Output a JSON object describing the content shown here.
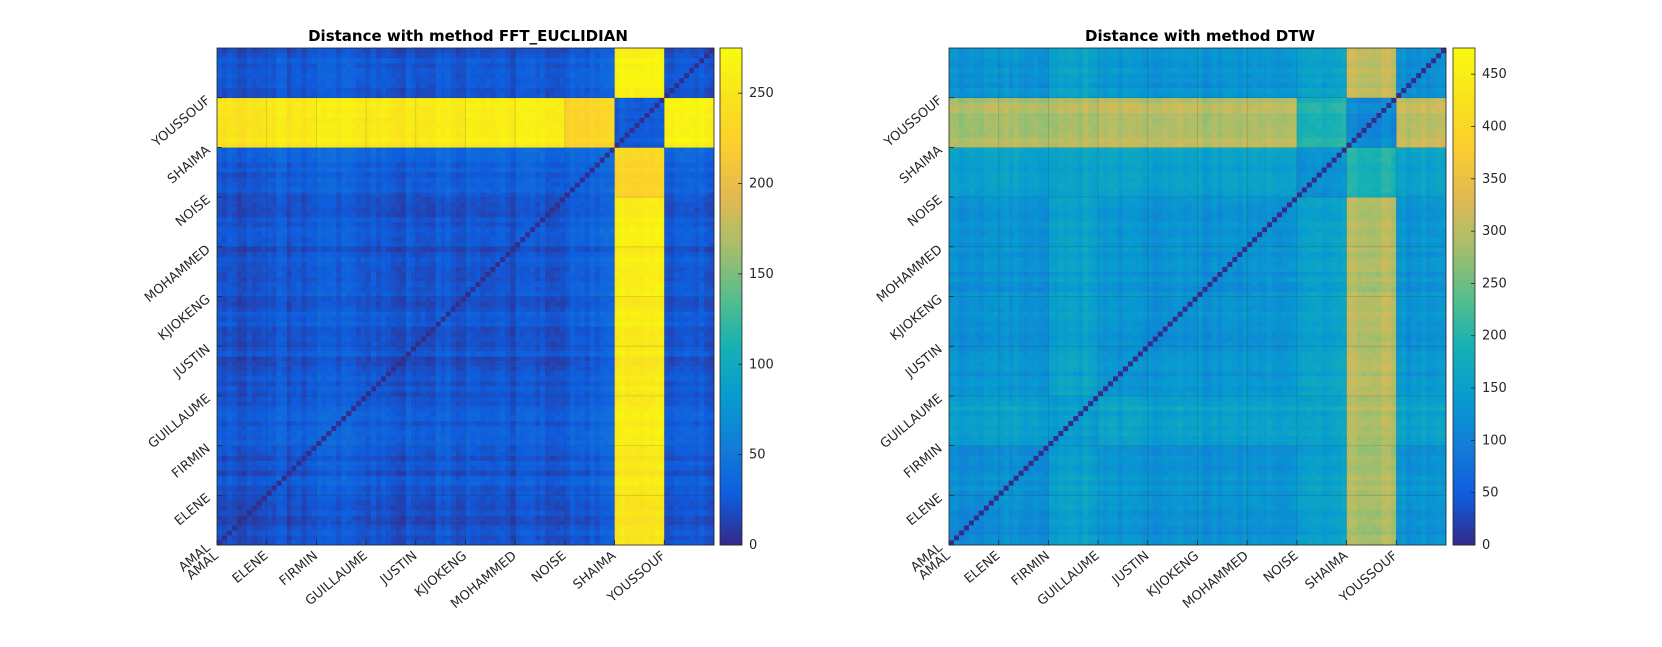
{
  "chart_data": [
    {
      "type": "heatmap",
      "title": "Distance with method FFT_EUCLIDIAN",
      "categories": [
        "AMAL",
        "ELENE",
        "FIRMIN",
        "GUILLAUME",
        "JUSTIN",
        "KJIOKENG",
        "MOHAMMED",
        "NOISE",
        "SHAIMA",
        "YOUSSOUF"
      ],
      "samples_per_category": 10,
      "values_desc": "symmetric 100x100 distance matrix; near 0 on diagonal; most off-diagonal 15-40; SHAIMA rows/columns vs others about 230-275",
      "base_levels": [
        [
          18,
          22,
          24,
          20,
          21,
          20,
          22,
          26,
          250,
          22
        ],
        [
          22,
          24,
          28,
          23,
          24,
          23,
          24,
          30,
          255,
          24
        ],
        [
          24,
          28,
          30,
          26,
          26,
          25,
          26,
          32,
          258,
          26
        ],
        [
          20,
          23,
          26,
          20,
          22,
          21,
          22,
          28,
          255,
          22
        ],
        [
          21,
          24,
          26,
          22,
          22,
          21,
          22,
          30,
          258,
          22
        ],
        [
          20,
          23,
          25,
          21,
          21,
          20,
          22,
          30,
          260,
          22
        ],
        [
          22,
          24,
          26,
          22,
          22,
          22,
          24,
          32,
          262,
          24
        ],
        [
          26,
          30,
          32,
          28,
          30,
          30,
          32,
          35,
          230,
          30
        ],
        [
          250,
          255,
          258,
          255,
          258,
          260,
          262,
          230,
          30,
          265
        ],
        [
          22,
          24,
          26,
          22,
          22,
          22,
          24,
          30,
          265,
          22
        ]
      ],
      "colorbar": {
        "min": 0,
        "max": 275,
        "ticks": [
          0,
          50,
          100,
          150,
          200,
          250
        ]
      },
      "colormap": "parula"
    },
    {
      "type": "heatmap",
      "title": "Distance with method DTW",
      "categories": [
        "AMAL",
        "ELENE",
        "FIRMIN",
        "GUILLAUME",
        "JUSTIN",
        "KJIOKENG",
        "MOHAMMED",
        "NOISE",
        "SHAIMA",
        "YOUSSOUF"
      ],
      "samples_per_category": 10,
      "values_desc": "symmetric 100x100 distance matrix; near 0 on diagonal; most off-diagonal 100-180; SHAIMA rows/columns vs others about 250-400",
      "base_levels": [
        [
          110,
          120,
          150,
          125,
          125,
          120,
          125,
          150,
          290,
          125
        ],
        [
          120,
          125,
          155,
          130,
          130,
          125,
          130,
          155,
          295,
          130
        ],
        [
          150,
          155,
          150,
          155,
          155,
          150,
          155,
          160,
          300,
          155
        ],
        [
          125,
          130,
          155,
          120,
          130,
          125,
          130,
          155,
          300,
          130
        ],
        [
          125,
          130,
          155,
          130,
          125,
          125,
          130,
          155,
          305,
          130
        ],
        [
          120,
          125,
          150,
          125,
          125,
          115,
          125,
          150,
          295,
          125
        ],
        [
          125,
          130,
          155,
          130,
          130,
          125,
          125,
          155,
          300,
          130
        ],
        [
          150,
          155,
          160,
          155,
          155,
          150,
          155,
          130,
          200,
          155
        ],
        [
          290,
          295,
          300,
          300,
          305,
          295,
          300,
          200,
          120,
          310
        ],
        [
          125,
          130,
          155,
          130,
          130,
          125,
          130,
          155,
          310,
          120
        ]
      ],
      "colorbar": {
        "min": 0,
        "max": 475,
        "ticks": [
          0,
          50,
          100,
          150,
          200,
          250,
          300,
          350,
          400,
          450
        ]
      },
      "colormap": "parula"
    }
  ]
}
